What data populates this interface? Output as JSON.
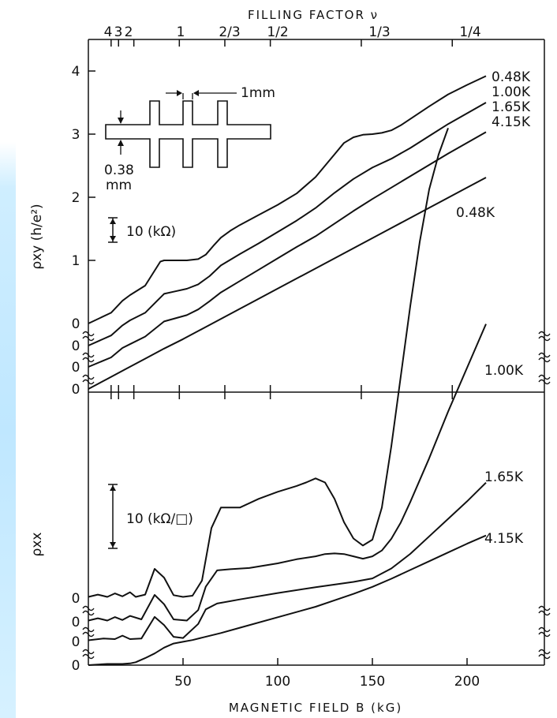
{
  "colors": {
    "ink": "#111111",
    "strip": "#bfe7ff"
  },
  "chart_data": {
    "type": "line",
    "title": "",
    "top_axis": {
      "label": "FILLING FACTOR ν",
      "ticks": [
        {
          "label": "4",
          "b": 5.2
        },
        {
          "label": "3",
          "b": 6.9
        },
        {
          "label": "2",
          "b": 10.4
        },
        {
          "label": "1",
          "b": 20.8
        },
        {
          "label": "2/3",
          "b": 31.2
        },
        {
          "label": "1/2",
          "b": 41.6
        },
        {
          "label": "1/3",
          "b": 62.4
        },
        {
          "label": "1/4",
          "b": 83.2
        }
      ],
      "b_scale": 2.31
    },
    "xlabel": "MAGNETIC FIELD B (kG)",
    "x_ticks": [
      50,
      100,
      150,
      200
    ],
    "xlim": [
      0,
      245
    ],
    "rho_xy": {
      "ylabel": "ρxy (h/e²)",
      "y_ticks": [
        "1",
        "2",
        "3",
        "4"
      ],
      "ylim": [
        0,
        4
      ],
      "offset_zero_labels": [
        "0",
        "0",
        "0",
        "0"
      ],
      "scale_bar": "10 (kΩ)",
      "series": [
        {
          "name": "0.48K",
          "x": [
            0,
            12,
            18,
            22,
            30,
            38,
            40,
            46,
            52,
            58,
            62,
            66,
            70,
            75,
            80,
            90,
            100,
            110,
            120,
            130,
            135,
            140,
            145,
            150,
            155,
            160,
            165,
            170,
            180,
            190,
            200,
            210
          ],
          "y": [
            0,
            0.17,
            0.36,
            0.45,
            0.6,
            0.98,
            1.0,
            1.0,
            1.0,
            1.02,
            1.09,
            1.23,
            1.36,
            1.47,
            1.56,
            1.72,
            1.88,
            2.06,
            2.32,
            2.68,
            2.86,
            2.95,
            2.99,
            3.0,
            3.02,
            3.06,
            3.14,
            3.24,
            3.44,
            3.63,
            3.78,
            3.92
          ]
        },
        {
          "name": "1.00K",
          "x": [
            0,
            12,
            18,
            22,
            30,
            40,
            46,
            52,
            58,
            64,
            70,
            80,
            90,
            100,
            110,
            120,
            130,
            140,
            150,
            160,
            170,
            180,
            190,
            200,
            210
          ],
          "y": [
            0,
            0.16,
            0.32,
            0.4,
            0.52,
            0.82,
            0.86,
            0.9,
            0.97,
            1.1,
            1.27,
            1.45,
            1.62,
            1.8,
            1.98,
            2.18,
            2.42,
            2.64,
            2.82,
            2.96,
            3.13,
            3.32,
            3.51,
            3.68,
            3.85
          ]
        },
        {
          "name": "1.65K",
          "x": [
            0,
            12,
            18,
            22,
            30,
            40,
            46,
            52,
            58,
            64,
            70,
            80,
            90,
            100,
            110,
            120,
            130,
            140,
            150,
            160,
            170,
            180,
            190,
            200,
            210
          ],
          "y": [
            0,
            0.15,
            0.3,
            0.36,
            0.48,
            0.72,
            0.77,
            0.82,
            0.91,
            1.04,
            1.18,
            1.36,
            1.54,
            1.72,
            1.9,
            2.07,
            2.27,
            2.47,
            2.66,
            2.84,
            3.02,
            3.2,
            3.38,
            3.55,
            3.72
          ]
        },
        {
          "name": "4.15K",
          "x": [
            0,
            10,
            20,
            30,
            40,
            50,
            60,
            80,
            100,
            120,
            140,
            160,
            180,
            200,
            210
          ],
          "y": [
            0,
            0.16,
            0.32,
            0.48,
            0.64,
            0.79,
            0.95,
            1.27,
            1.59,
            1.91,
            2.23,
            2.55,
            2.87,
            3.19,
            3.35
          ]
        }
      ]
    },
    "rho_xx": {
      "ylabel": "ρxx",
      "offset_zero_labels": [
        "0",
        "0",
        "0",
        "0"
      ],
      "scale_bar": "10 (kΩ/□)",
      "scale_bar_units": 1.0,
      "series": [
        {
          "name": "0.48K",
          "x": [
            0,
            5,
            10,
            14,
            18,
            22,
            25,
            30,
            35,
            40,
            45,
            50,
            55,
            60,
            65,
            70,
            75,
            80,
            90,
            100,
            110,
            115,
            120,
            125,
            130,
            135,
            140,
            145,
            150,
            155,
            160,
            165,
            170,
            175,
            180,
            185,
            190
          ],
          "y": [
            0.02,
            0.06,
            0.02,
            0.08,
            0.03,
            0.1,
            0.02,
            0.06,
            0.5,
            0.35,
            0.05,
            0.02,
            0.04,
            0.3,
            1.2,
            1.55,
            1.55,
            1.55,
            1.7,
            1.82,
            1.92,
            1.98,
            2.05,
            1.98,
            1.7,
            1.3,
            1.02,
            0.9,
            1.0,
            1.55,
            2.6,
            3.8,
            5.0,
            6.1,
            7.0,
            7.6,
            8.05
          ]
        },
        {
          "name": "1.00K",
          "x": [
            0,
            5,
            10,
            14,
            18,
            22,
            28,
            35,
            40,
            45,
            52,
            58,
            62,
            68,
            75,
            85,
            100,
            110,
            120,
            125,
            130,
            135,
            140,
            145,
            150,
            155,
            160,
            165,
            170,
            180,
            190,
            200,
            210
          ],
          "y": [
            0.02,
            0.06,
            0.02,
            0.08,
            0.03,
            0.1,
            0.04,
            0.46,
            0.3,
            0.04,
            0.02,
            0.2,
            0.6,
            0.88,
            0.9,
            0.92,
            1.0,
            1.07,
            1.12,
            1.16,
            1.17,
            1.16,
            1.12,
            1.08,
            1.12,
            1.22,
            1.42,
            1.7,
            2.05,
            2.8,
            3.6,
            4.35,
            5.1
          ]
        },
        {
          "name": "1.65K",
          "x": [
            0,
            8,
            14,
            18,
            22,
            28,
            35,
            40,
            45,
            50,
            58,
            62,
            68,
            80,
            100,
            120,
            140,
            150,
            160,
            170,
            180,
            190,
            200,
            210
          ],
          "y": [
            0.02,
            0.05,
            0.04,
            0.1,
            0.04,
            0.05,
            0.42,
            0.28,
            0.08,
            0.06,
            0.3,
            0.55,
            0.65,
            0.72,
            0.83,
            0.93,
            1.02,
            1.08,
            1.25,
            1.5,
            1.8,
            2.1,
            2.4,
            2.72
          ]
        },
        {
          "name": "4.15K",
          "x": [
            0,
            10,
            18,
            22,
            25,
            30,
            35,
            40,
            45,
            50,
            55,
            60,
            70,
            80,
            100,
            120,
            140,
            150,
            160,
            170,
            180,
            190,
            200,
            210
          ],
          "y": [
            0,
            0.02,
            0.02,
            0.03,
            0.05,
            0.12,
            0.2,
            0.3,
            0.37,
            0.4,
            0.43,
            0.47,
            0.55,
            0.64,
            0.82,
            1.0,
            1.22,
            1.34,
            1.48,
            1.63,
            1.78,
            1.93,
            2.08,
            2.22
          ]
        }
      ]
    },
    "inset": {
      "dimension_top": "1mm",
      "dimension_left_value": "0.38",
      "dimension_left_unit": "mm"
    }
  }
}
